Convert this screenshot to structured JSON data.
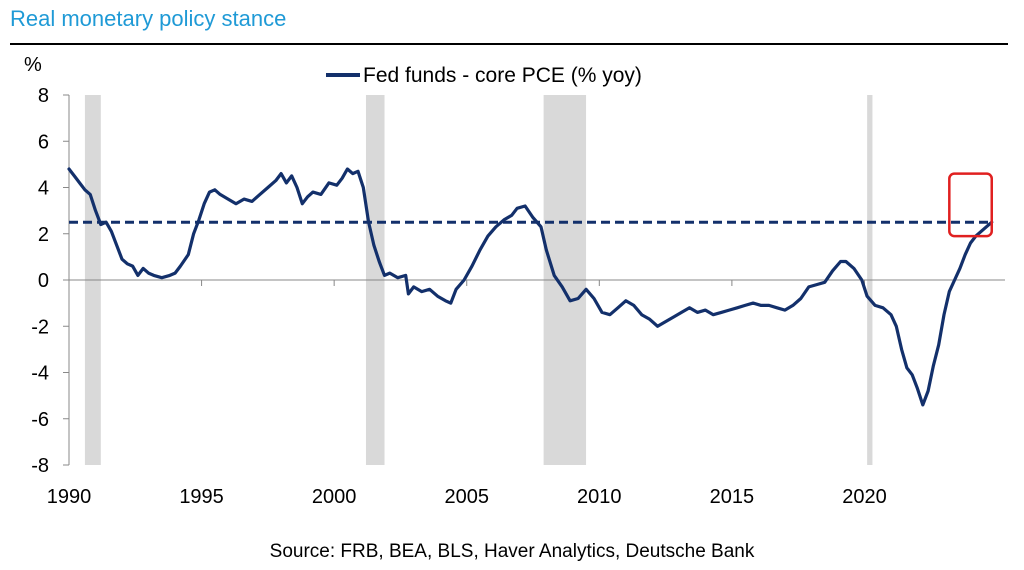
{
  "title": "Real monetary policy stance",
  "source": "Source: FRB, BEA, BLS, Haver Analytics, Deutsche Bank",
  "chart_data": {
    "type": "line",
    "ylabel": "%",
    "xlim": [
      1990,
      2025.3
    ],
    "ylim": [
      -8,
      8
    ],
    "x_ticks": [
      1990,
      1995,
      2000,
      2005,
      2010,
      2015,
      2020
    ],
    "x_tick_labels": [
      "1990",
      "1995",
      "2000",
      "2005",
      "2010",
      "2015",
      "2020"
    ],
    "y_ticks": [
      -8,
      -6,
      -4,
      -2,
      0,
      2,
      4,
      6,
      8
    ],
    "y_tick_labels": [
      "-8",
      "-6",
      "-4",
      "-2",
      "0",
      "2",
      "4",
      "6",
      "8"
    ],
    "grid": false,
    "legend_position": "top-center",
    "colors": {
      "series": "#13306b",
      "recession": "#d9d9d9",
      "highlight": "#e02020"
    },
    "recessions": [
      [
        1990.6,
        1991.2
      ],
      [
        2001.2,
        2001.9
      ],
      [
        2007.9,
        2009.5
      ],
      [
        2020.1,
        2020.3
      ]
    ],
    "reference_line": {
      "y": 2.5,
      "style": "dashed"
    },
    "highlight_box": {
      "x": [
        2023.2,
        2024.8
      ],
      "y": [
        1.9,
        4.6
      ]
    },
    "series": [
      {
        "name": "Fed funds - core PCE (% yoy)",
        "points": [
          [
            1990.0,
            4.8
          ],
          [
            1990.2,
            4.5
          ],
          [
            1990.4,
            4.2
          ],
          [
            1990.6,
            3.9
          ],
          [
            1990.8,
            3.7
          ],
          [
            1991.0,
            3.0
          ],
          [
            1991.2,
            2.4
          ],
          [
            1991.4,
            2.5
          ],
          [
            1991.6,
            2.1
          ],
          [
            1991.8,
            1.5
          ],
          [
            1992.0,
            0.9
          ],
          [
            1992.2,
            0.7
          ],
          [
            1992.4,
            0.6
          ],
          [
            1992.6,
            0.2
          ],
          [
            1992.8,
            0.5
          ],
          [
            1993.0,
            0.3
          ],
          [
            1993.2,
            0.2
          ],
          [
            1993.5,
            0.1
          ],
          [
            1993.8,
            0.2
          ],
          [
            1994.0,
            0.3
          ],
          [
            1994.2,
            0.6
          ],
          [
            1994.5,
            1.1
          ],
          [
            1994.7,
            2.0
          ],
          [
            1994.9,
            2.6
          ],
          [
            1995.1,
            3.3
          ],
          [
            1995.3,
            3.8
          ],
          [
            1995.5,
            3.9
          ],
          [
            1995.7,
            3.7
          ],
          [
            1996.0,
            3.5
          ],
          [
            1996.3,
            3.3
          ],
          [
            1996.6,
            3.5
          ],
          [
            1996.9,
            3.4
          ],
          [
            1997.2,
            3.7
          ],
          [
            1997.5,
            4.0
          ],
          [
            1997.8,
            4.3
          ],
          [
            1998.0,
            4.6
          ],
          [
            1998.2,
            4.2
          ],
          [
            1998.4,
            4.5
          ],
          [
            1998.6,
            4.0
          ],
          [
            1998.8,
            3.3
          ],
          [
            1999.0,
            3.6
          ],
          [
            1999.2,
            3.8
          ],
          [
            1999.5,
            3.7
          ],
          [
            1999.8,
            4.2
          ],
          [
            2000.1,
            4.1
          ],
          [
            2000.3,
            4.4
          ],
          [
            2000.5,
            4.8
          ],
          [
            2000.7,
            4.6
          ],
          [
            2000.9,
            4.7
          ],
          [
            2001.1,
            4.0
          ],
          [
            2001.3,
            2.5
          ],
          [
            2001.5,
            1.5
          ],
          [
            2001.7,
            0.8
          ],
          [
            2001.9,
            0.2
          ],
          [
            2002.1,
            0.3
          ],
          [
            2002.4,
            0.1
          ],
          [
            2002.7,
            0.2
          ],
          [
            2002.8,
            -0.6
          ],
          [
            2003.0,
            -0.3
          ],
          [
            2003.3,
            -0.5
          ],
          [
            2003.6,
            -0.4
          ],
          [
            2003.9,
            -0.7
          ],
          [
            2004.2,
            -0.9
          ],
          [
            2004.4,
            -1.0
          ],
          [
            2004.6,
            -0.4
          ],
          [
            2004.9,
            0.0
          ],
          [
            2005.2,
            0.6
          ],
          [
            2005.5,
            1.3
          ],
          [
            2005.8,
            1.9
          ],
          [
            2006.1,
            2.3
          ],
          [
            2006.4,
            2.6
          ],
          [
            2006.7,
            2.8
          ],
          [
            2006.9,
            3.1
          ],
          [
            2007.2,
            3.2
          ],
          [
            2007.5,
            2.7
          ],
          [
            2007.8,
            2.3
          ],
          [
            2008.0,
            1.3
          ],
          [
            2008.3,
            0.2
          ],
          [
            2008.6,
            -0.3
          ],
          [
            2008.9,
            -0.9
          ],
          [
            2009.2,
            -0.8
          ],
          [
            2009.5,
            -0.4
          ],
          [
            2009.8,
            -0.8
          ],
          [
            2010.1,
            -1.4
          ],
          [
            2010.4,
            -1.5
          ],
          [
            2010.7,
            -1.2
          ],
          [
            2011.0,
            -0.9
          ],
          [
            2011.3,
            -1.1
          ],
          [
            2011.6,
            -1.5
          ],
          [
            2011.9,
            -1.7
          ],
          [
            2012.2,
            -2.0
          ],
          [
            2012.5,
            -1.8
          ],
          [
            2012.8,
            -1.6
          ],
          [
            2013.1,
            -1.4
          ],
          [
            2013.4,
            -1.2
          ],
          [
            2013.7,
            -1.4
          ],
          [
            2014.0,
            -1.3
          ],
          [
            2014.3,
            -1.5
          ],
          [
            2014.6,
            -1.4
          ],
          [
            2014.9,
            -1.3
          ],
          [
            2015.2,
            -1.2
          ],
          [
            2015.5,
            -1.1
          ],
          [
            2015.8,
            -1.0
          ],
          [
            2016.1,
            -1.1
          ],
          [
            2016.4,
            -1.1
          ],
          [
            2016.7,
            -1.2
          ],
          [
            2017.0,
            -1.3
          ],
          [
            2017.3,
            -1.1
          ],
          [
            2017.6,
            -0.8
          ],
          [
            2017.9,
            -0.3
          ],
          [
            2018.2,
            -0.2
          ],
          [
            2018.5,
            -0.1
          ],
          [
            2018.8,
            0.4
          ],
          [
            2019.1,
            0.8
          ],
          [
            2019.3,
            0.8
          ],
          [
            2019.6,
            0.5
          ],
          [
            2019.9,
            0.0
          ],
          [
            2020.1,
            -0.7
          ],
          [
            2020.4,
            -1.1
          ],
          [
            2020.7,
            -1.2
          ],
          [
            2021.0,
            -1.5
          ],
          [
            2021.2,
            -2.0
          ],
          [
            2021.4,
            -3.0
          ],
          [
            2021.6,
            -3.8
          ],
          [
            2021.8,
            -4.1
          ],
          [
            2022.0,
            -4.7
          ],
          [
            2022.2,
            -5.4
          ],
          [
            2022.4,
            -4.8
          ],
          [
            2022.6,
            -3.7
          ],
          [
            2022.8,
            -2.8
          ],
          [
            2023.0,
            -1.5
          ],
          [
            2023.2,
            -0.5
          ],
          [
            2023.4,
            0.0
          ],
          [
            2023.6,
            0.5
          ],
          [
            2023.8,
            1.1
          ],
          [
            2024.0,
            1.6
          ],
          [
            2024.2,
            1.9
          ],
          [
            2024.4,
            2.1
          ],
          [
            2024.6,
            2.3
          ],
          [
            2024.8,
            2.5
          ]
        ]
      }
    ]
  }
}
